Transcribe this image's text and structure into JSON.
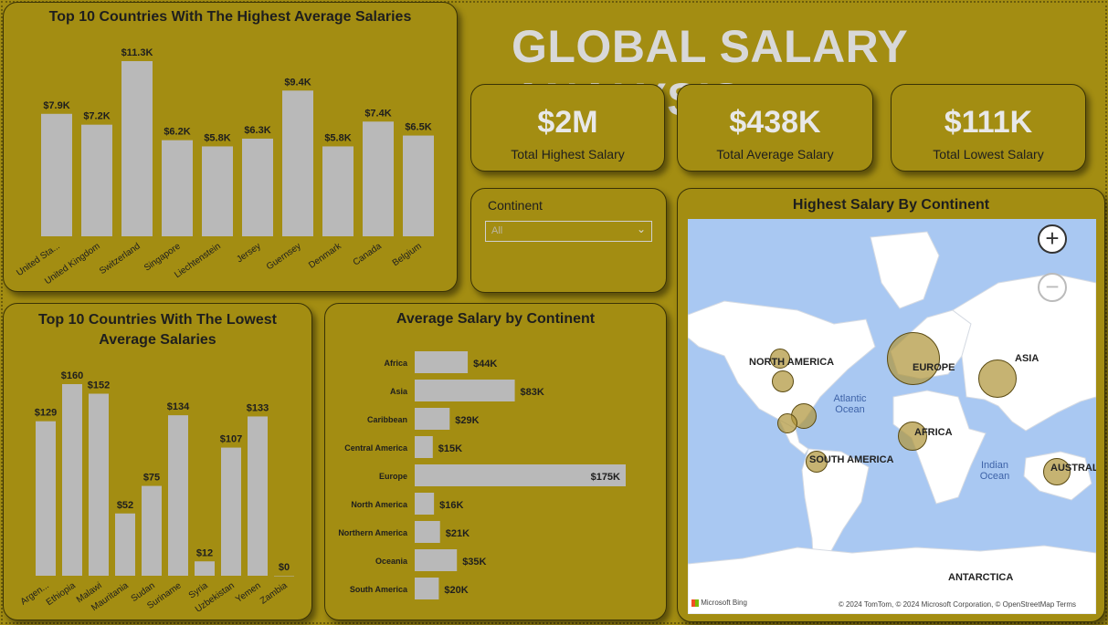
{
  "title": "GLOBAL SALARY ANALYSIS",
  "kpis": [
    {
      "value": "$2M",
      "label": "Total Highest Salary"
    },
    {
      "value": "$438K",
      "label": "Total Average Salary"
    },
    {
      "value": "$111K",
      "label": "Total Lowest Salary"
    }
  ],
  "slicer": {
    "label": "Continent",
    "value": "All"
  },
  "map": {
    "title": "Highest Salary By Continent",
    "labels": [
      "NORTH AMERICA",
      "EUROPE",
      "ASIA",
      "AFRICA",
      "SOUTH AMERICA",
      "AUSTRAL",
      "ANTARCTICA"
    ],
    "oceans": {
      "atlantic": "Atlantic Ocean",
      "indian": "Indian Ocean"
    },
    "attribution": "© 2024 TomTom, © 2024 Microsoft Corporation, © OpenStreetMap   Terms",
    "provider": "Microsoft Bing"
  },
  "chart_data": [
    {
      "type": "bar",
      "title": "Top 10 Countries With The Highest Average Salaries",
      "categories": [
        "United Sta...",
        "United Kingdom",
        "Switzerland",
        "Singapore",
        "Liechtenstein",
        "Jersey",
        "Guernsey",
        "Denmark",
        "Canada",
        "Belgium"
      ],
      "values": [
        7900,
        7200,
        11300,
        6200,
        5800,
        6300,
        9400,
        5800,
        7400,
        6500
      ],
      "labels": [
        "$7.9K",
        "$7.2K",
        "$11.3K",
        "$6.2K",
        "$5.8K",
        "$6.3K",
        "$9.4K",
        "$5.8K",
        "$7.4K",
        "$6.5K"
      ]
    },
    {
      "type": "bar",
      "title": "Top 10 Countries With The Lowest Average Salaries",
      "categories": [
        "Argen...",
        "Ethiopia",
        "Malawi",
        "Mauritania",
        "Sudan",
        "Suriname",
        "Syria",
        "Uzbekistan",
        "Yemen",
        "Zambia"
      ],
      "values": [
        129,
        160,
        152,
        52,
        75,
        134,
        12,
        107,
        133,
        0
      ],
      "labels": [
        "$129",
        "$160",
        "$152",
        "$52",
        "$75",
        "$134",
        "$12",
        "$107",
        "$133",
        "$0"
      ]
    },
    {
      "type": "bar",
      "orientation": "horizontal",
      "title": "Average Salary by Continent",
      "categories": [
        "Africa",
        "Asia",
        "Caribbean",
        "Central America",
        "Europe",
        "North America",
        "Northern America",
        "Oceania",
        "South America"
      ],
      "values": [
        44000,
        83000,
        29000,
        15000,
        175000,
        16000,
        21000,
        35000,
        20000
      ],
      "labels": [
        "$44K",
        "$83K",
        "$29K",
        "$15K",
        "$175K",
        "$16K",
        "$21K",
        "$35K",
        "$20K"
      ]
    }
  ]
}
